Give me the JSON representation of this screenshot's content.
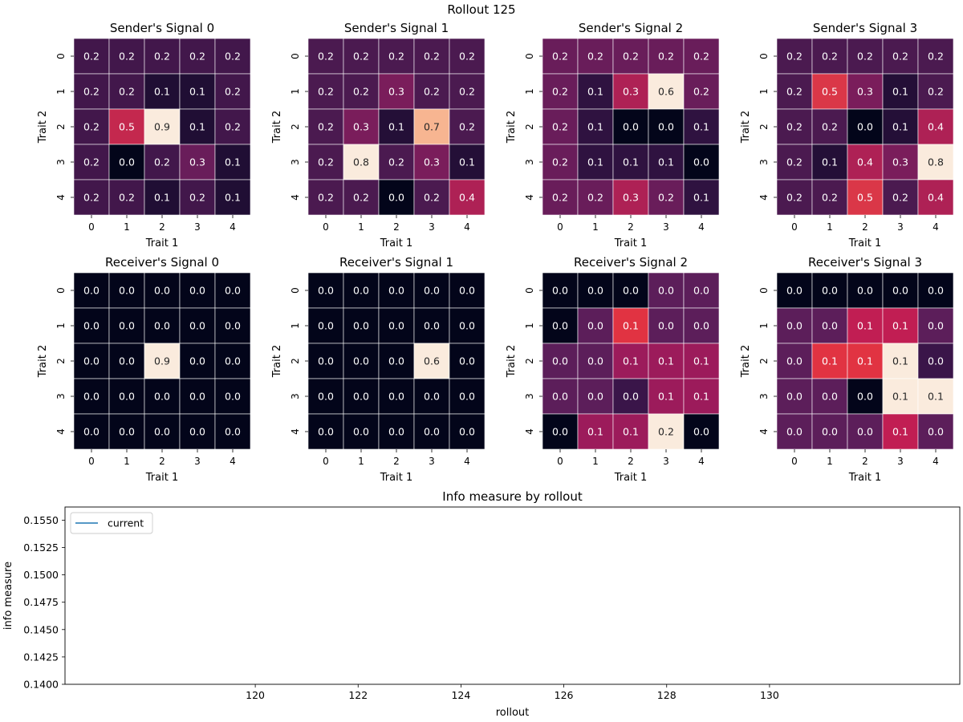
{
  "figure_title": "Rollout 125",
  "chart_data": [
    {
      "type": "heatmap",
      "title": "Sender's Signal 0",
      "xlabel": "Trait 1",
      "ylabel": "Trait 2",
      "x_ticks": [
        "0",
        "1",
        "2",
        "3",
        "4"
      ],
      "y_ticks": [
        "0",
        "1",
        "2",
        "3",
        "4"
      ],
      "values": [
        [
          0.2,
          0.2,
          0.2,
          0.2,
          0.2
        ],
        [
          0.2,
          0.2,
          0.1,
          0.1,
          0.2
        ],
        [
          0.2,
          0.5,
          0.9,
          0.1,
          0.2
        ],
        [
          0.2,
          0.0,
          0.2,
          0.3,
          0.1
        ],
        [
          0.2,
          0.2,
          0.1,
          0.2,
          0.1
        ]
      ],
      "colormap": "rocket"
    },
    {
      "type": "heatmap",
      "title": "Sender's Signal 1",
      "xlabel": "Trait 1",
      "ylabel": "Trait 2",
      "x_ticks": [
        "0",
        "1",
        "2",
        "3",
        "4"
      ],
      "y_ticks": [
        "0",
        "1",
        "2",
        "3",
        "4"
      ],
      "values": [
        [
          0.2,
          0.2,
          0.2,
          0.2,
          0.2
        ],
        [
          0.2,
          0.2,
          0.3,
          0.2,
          0.2
        ],
        [
          0.2,
          0.3,
          0.1,
          0.7,
          0.2
        ],
        [
          0.2,
          0.8,
          0.2,
          0.3,
          0.1
        ],
        [
          0.2,
          0.2,
          0.0,
          0.2,
          0.4
        ]
      ],
      "colormap": "rocket"
    },
    {
      "type": "heatmap",
      "title": "Sender's Signal 2",
      "xlabel": "Trait 1",
      "ylabel": "Trait 2",
      "x_ticks": [
        "0",
        "1",
        "2",
        "3",
        "4"
      ],
      "y_ticks": [
        "0",
        "1",
        "2",
        "3",
        "4"
      ],
      "values": [
        [
          0.2,
          0.2,
          0.2,
          0.2,
          0.2
        ],
        [
          0.2,
          0.1,
          0.3,
          0.6,
          0.2
        ],
        [
          0.2,
          0.1,
          0.0,
          0.0,
          0.1
        ],
        [
          0.2,
          0.1,
          0.1,
          0.1,
          0.0
        ],
        [
          0.2,
          0.2,
          0.3,
          0.2,
          0.1
        ]
      ],
      "colormap": "rocket"
    },
    {
      "type": "heatmap",
      "title": "Sender's Signal 3",
      "xlabel": "Trait 1",
      "ylabel": "Trait 2",
      "x_ticks": [
        "0",
        "1",
        "2",
        "3",
        "4"
      ],
      "y_ticks": [
        "0",
        "1",
        "2",
        "3",
        "4"
      ],
      "values": [
        [
          0.2,
          0.2,
          0.2,
          0.2,
          0.2
        ],
        [
          0.2,
          0.5,
          0.3,
          0.1,
          0.2
        ],
        [
          0.2,
          0.2,
          0.0,
          0.1,
          0.4
        ],
        [
          0.2,
          0.1,
          0.4,
          0.3,
          0.8
        ],
        [
          0.2,
          0.2,
          0.5,
          0.2,
          0.4
        ]
      ],
      "colormap": "rocket"
    },
    {
      "type": "heatmap",
      "title": "Receiver's Signal 0",
      "xlabel": "Trait 1",
      "ylabel": "Trait 2",
      "x_ticks": [
        "0",
        "1",
        "2",
        "3",
        "4"
      ],
      "y_ticks": [
        "0",
        "1",
        "2",
        "3",
        "4"
      ],
      "values": [
        [
          0.0,
          0.0,
          0.0,
          0.0,
          0.0
        ],
        [
          0.0,
          0.0,
          0.0,
          0.0,
          0.0
        ],
        [
          0.0,
          0.0,
          0.9,
          0.0,
          0.0
        ],
        [
          0.0,
          0.0,
          0.0,
          0.0,
          0.0
        ],
        [
          0.0,
          0.0,
          0.0,
          0.0,
          0.0
        ]
      ],
      "colormap": "rocket"
    },
    {
      "type": "heatmap",
      "title": "Receiver's Signal 1",
      "xlabel": "Trait 1",
      "ylabel": "Trait 2",
      "x_ticks": [
        "0",
        "1",
        "2",
        "3",
        "4"
      ],
      "y_ticks": [
        "0",
        "1",
        "2",
        "3",
        "4"
      ],
      "values": [
        [
          0.0,
          0.0,
          0.0,
          0.0,
          0.0
        ],
        [
          0.0,
          0.0,
          0.0,
          0.0,
          0.0
        ],
        [
          0.0,
          0.0,
          0.0,
          0.6,
          0.0
        ],
        [
          0.0,
          0.0,
          0.0,
          0.0,
          0.0
        ],
        [
          0.0,
          0.0,
          0.0,
          0.0,
          0.0
        ]
      ],
      "colormap": "rocket"
    },
    {
      "type": "heatmap",
      "title": "Receiver's Signal 2",
      "xlabel": "Trait 1",
      "ylabel": "Trait 2",
      "x_ticks": [
        "0",
        "1",
        "2",
        "3",
        "4"
      ],
      "y_ticks": [
        "0",
        "1",
        "2",
        "3",
        "4"
      ],
      "values": [
        [
          0.0,
          0.0,
          0.0,
          0.0,
          0.0
        ],
        [
          0.0,
          0.0,
          0.1,
          0.0,
          0.0
        ],
        [
          0.0,
          0.0,
          0.1,
          0.1,
          0.1
        ],
        [
          0.0,
          0.0,
          0.0,
          0.1,
          0.1
        ],
        [
          0.0,
          0.1,
          0.1,
          0.2,
          0.0
        ]
      ],
      "colors_hint": [
        [
          "#03051a",
          "#03051a",
          "#03051a",
          "#5c1e5a",
          "#5c1e5a"
        ],
        [
          "#03051a",
          "#5c1e5a",
          "#e13342",
          "#5c1e5a",
          "#5c1e5a"
        ],
        [
          "#5c1e5a",
          "#5c1e5a",
          "#9c1b5b",
          "#9c1b5b",
          "#9c1b5b"
        ],
        [
          "#5c1e5a",
          "#5c1e5a",
          "#3a1549",
          "#9c1b5b",
          "#9c1b5b"
        ],
        [
          "#03051a",
          "#9c1b5b",
          "#9c1b5b",
          "#faebdd",
          "#03051a"
        ]
      ],
      "colormap": "rocket"
    },
    {
      "type": "heatmap",
      "title": "Receiver's Signal 3",
      "xlabel": "Trait 1",
      "ylabel": "Trait 2",
      "x_ticks": [
        "0",
        "1",
        "2",
        "3",
        "4"
      ],
      "y_ticks": [
        "0",
        "1",
        "2",
        "3",
        "4"
      ],
      "values": [
        [
          0.0,
          0.0,
          0.0,
          0.0,
          0.0
        ],
        [
          0.0,
          0.0,
          0.1,
          0.1,
          0.0
        ],
        [
          0.0,
          0.1,
          0.1,
          0.1,
          0.0
        ],
        [
          0.0,
          0.0,
          0.0,
          0.1,
          0.1
        ],
        [
          0.0,
          0.0,
          0.0,
          0.1,
          0.0
        ]
      ],
      "colors_hint": [
        [
          "#03051a",
          "#03051a",
          "#03051a",
          "#03051a",
          "#03051a"
        ],
        [
          "#5c1e5a",
          "#5c1e5a",
          "#c11e53",
          "#c11e53",
          "#5c1e5a"
        ],
        [
          "#5c1e5a",
          "#e13342",
          "#e13342",
          "#faebdd",
          "#3a1549"
        ],
        [
          "#5c1e5a",
          "#5c1e5a",
          "#03051a",
          "#faebdd",
          "#faebdd"
        ],
        [
          "#5c1e5a",
          "#5c1e5a",
          "#5c1e5a",
          "#c11e53",
          "#5c1e5a"
        ]
      ],
      "colormap": "rocket"
    },
    {
      "type": "line",
      "title": "Info measure by rollout",
      "xlabel": "rollout",
      "ylabel": "info measure",
      "xlim": [
        116.3,
        133.7
      ],
      "ylim": [
        0.14,
        0.1562
      ],
      "x_ticks": [
        120,
        122,
        124,
        126,
        128,
        130
      ],
      "x_tick_labels": [
        "120",
        "122",
        "124",
        "126",
        "128",
        "130"
      ],
      "y_ticks": [
        0.14,
        0.1425,
        0.145,
        0.1475,
        0.15,
        0.1525,
        0.155
      ],
      "y_tick_labels": [
        "0.1400",
        "0.1425",
        "0.1450",
        "0.1475",
        "0.1500",
        "0.1525",
        "0.1550"
      ],
      "series": [
        {
          "name": "current",
          "color": "#1f77b4",
          "x": [],
          "y": []
        }
      ],
      "legend_position": "top-left",
      "grid": false
    }
  ]
}
